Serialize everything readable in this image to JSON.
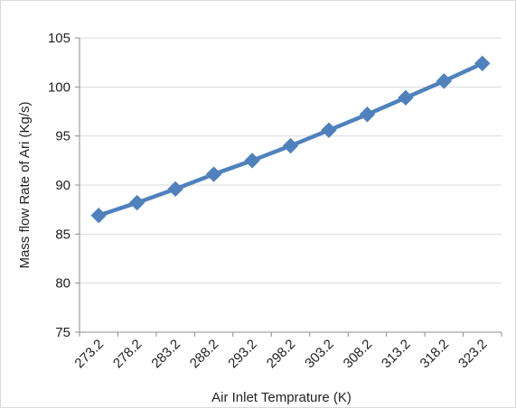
{
  "chart_data": {
    "type": "line",
    "title": "",
    "xlabel": "Air Inlet Temprature (K)",
    "ylabel": "Mass flow Rate of Ari (Kg/s)",
    "categories": [
      "273.2",
      "278.2",
      "283.2",
      "288.2",
      "293.2",
      "298.2",
      "303.2",
      "308.2",
      "313.2",
      "318.2",
      "323.2"
    ],
    "series": [
      {
        "values": [
          86.9,
          88.2,
          89.6,
          91.1,
          92.5,
          94.0,
          95.6,
          97.2,
          98.9,
          100.6,
          102.4
        ],
        "color": "#4f81bd",
        "marker": "diamond"
      }
    ],
    "ylim": [
      75,
      105
    ],
    "yticks": [
      75,
      80,
      85,
      90,
      95,
      100,
      105
    ],
    "grid": "horizontal",
    "legend": "none"
  }
}
